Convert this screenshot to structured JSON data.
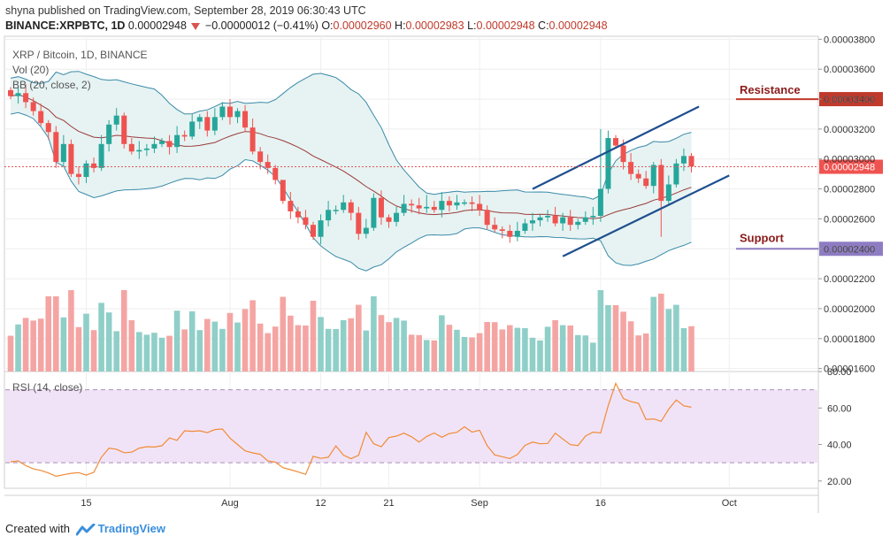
{
  "header": {
    "author": "shyna",
    "published": "published on TradingView.com, September 28, 2019 06:30:43 UTC",
    "symbol": "BINANCE:XRPBTC, 1D",
    "last": "0.00002948",
    "change": "−0.00000012 (−0.41%)",
    "o_label": "O:",
    "o": "0.00002960",
    "h_label": "H:",
    "h": "0.00002983",
    "l_label": "L:",
    "l": "0.00002948",
    "c_label": "C:",
    "c": "0.00002948"
  },
  "legend": {
    "title": "XRP / Bitcoin, 1D, BINANCE",
    "vol": "Vol (20)",
    "bb": "BB (20, close, 2)",
    "rsi": "RSI (14, close)"
  },
  "annotations": {
    "resistance": "Resistance",
    "resistance_price": "0.00003400",
    "support": "Support",
    "support_price": "0.00002400",
    "current_price": "0.00002948"
  },
  "colors": {
    "up": "#26a69a",
    "down": "#ef5350",
    "vol_up": "#8fcfc8",
    "vol_down": "#f4a5a3",
    "bb_band": "#3b8aa8",
    "bb_mid": "#9c3b3b",
    "bb_fill": "#e6f3f2",
    "trend": "#1f4f8f",
    "rsi_line": "#f08c36",
    "rsi_bg": "#f1e3f7",
    "resistance": "#c0392b",
    "support": "#8e7cc3"
  },
  "footer": {
    "created_with": "Created with",
    "brand": "TradingView"
  },
  "chart_data": {
    "type": "candlestick",
    "title": "XRP / Bitcoin, 1D, BINANCE",
    "price_axis_ticks": [
      "0.00003800",
      "0.00003600",
      "0.00003400",
      "0.00003200",
      "0.00003000",
      "0.00002800",
      "0.00002600",
      "0.00002400",
      "0.00002200",
      "0.00002000",
      "0.00001800",
      "0.00001600"
    ],
    "price_ylim": [
      1.58e-05,
      3.82e-05
    ],
    "rsi_axis_ticks": [
      "80.00",
      "60.00",
      "40.00",
      "20.00"
    ],
    "rsi_ylim": [
      16,
      80
    ],
    "x_ticks": [
      "15",
      "Aug",
      "12",
      "21",
      "Sep",
      "16",
      "Oct"
    ],
    "closes": [
      3.42,
      3.44,
      3.38,
      3.32,
      3.24,
      3.18,
      2.98,
      3.1,
      2.9,
      2.88,
      2.97,
      2.94,
      3.1,
      3.23,
      3.29,
      3.1,
      3.05,
      3.06,
      3.07,
      3.1,
      3.12,
      3.08,
      3.16,
      3.15,
      3.25,
      3.28,
      3.19,
      3.28,
      3.35,
      3.28,
      3.32,
      3.21,
      3.05,
      2.98,
      2.94,
      2.86,
      2.72,
      2.65,
      2.61,
      2.56,
      2.48,
      2.59,
      2.66,
      2.66,
      2.71,
      2.64,
      2.5,
      2.54,
      2.74,
      2.61,
      2.58,
      2.64,
      2.7,
      2.69,
      2.67,
      2.68,
      2.66,
      2.72,
      2.69,
      2.71,
      2.71,
      2.7,
      2.66,
      2.56,
      2.53,
      2.52,
      2.48,
      2.52,
      2.57,
      2.59,
      2.61,
      2.62,
      2.57,
      2.61,
      2.56,
      2.58,
      2.61,
      2.62,
      2.8,
      3.14,
      3.09,
      2.98,
      2.9,
      2.87,
      2.82,
      2.96,
      2.72,
      2.83,
      2.97,
      3.02,
      2.95
    ],
    "rsi": [
      30.5,
      31,
      28.4,
      26.6,
      25.8,
      24.4,
      22.6,
      23.4,
      24.2,
      24.6,
      23.2,
      24.8,
      33,
      38,
      37.4,
      35.5,
      35.8,
      38,
      38.8,
      38.6,
      39.3,
      43.6,
      42.3,
      47.5,
      47.2,
      47.5,
      46.5,
      48.2,
      48.5,
      43.5,
      40,
      36.5,
      35.4,
      34.6,
      31,
      30.3,
      27.3,
      26.2,
      25,
      23.6,
      33.5,
      32.4,
      33,
      39.2,
      34.2,
      32.2,
      34.1,
      46.7,
      40.4,
      38.8,
      43.8,
      44.6,
      46.2,
      44.2,
      41.3,
      44.4,
      46.3,
      44,
      46,
      46.7,
      49.7,
      46.8,
      47.8,
      39.3,
      34.3,
      33.3,
      32.3,
      34.5,
      39.5,
      41.3,
      40.4,
      40.6,
      46.2,
      43,
      39.9,
      39.4,
      44.6,
      46.8,
      46.3,
      61.3,
      73.5,
      65.2,
      63.5,
      62.6,
      53.7,
      54,
      52.7,
      59.4,
      64.4,
      61.2,
      60.4
    ]
  }
}
